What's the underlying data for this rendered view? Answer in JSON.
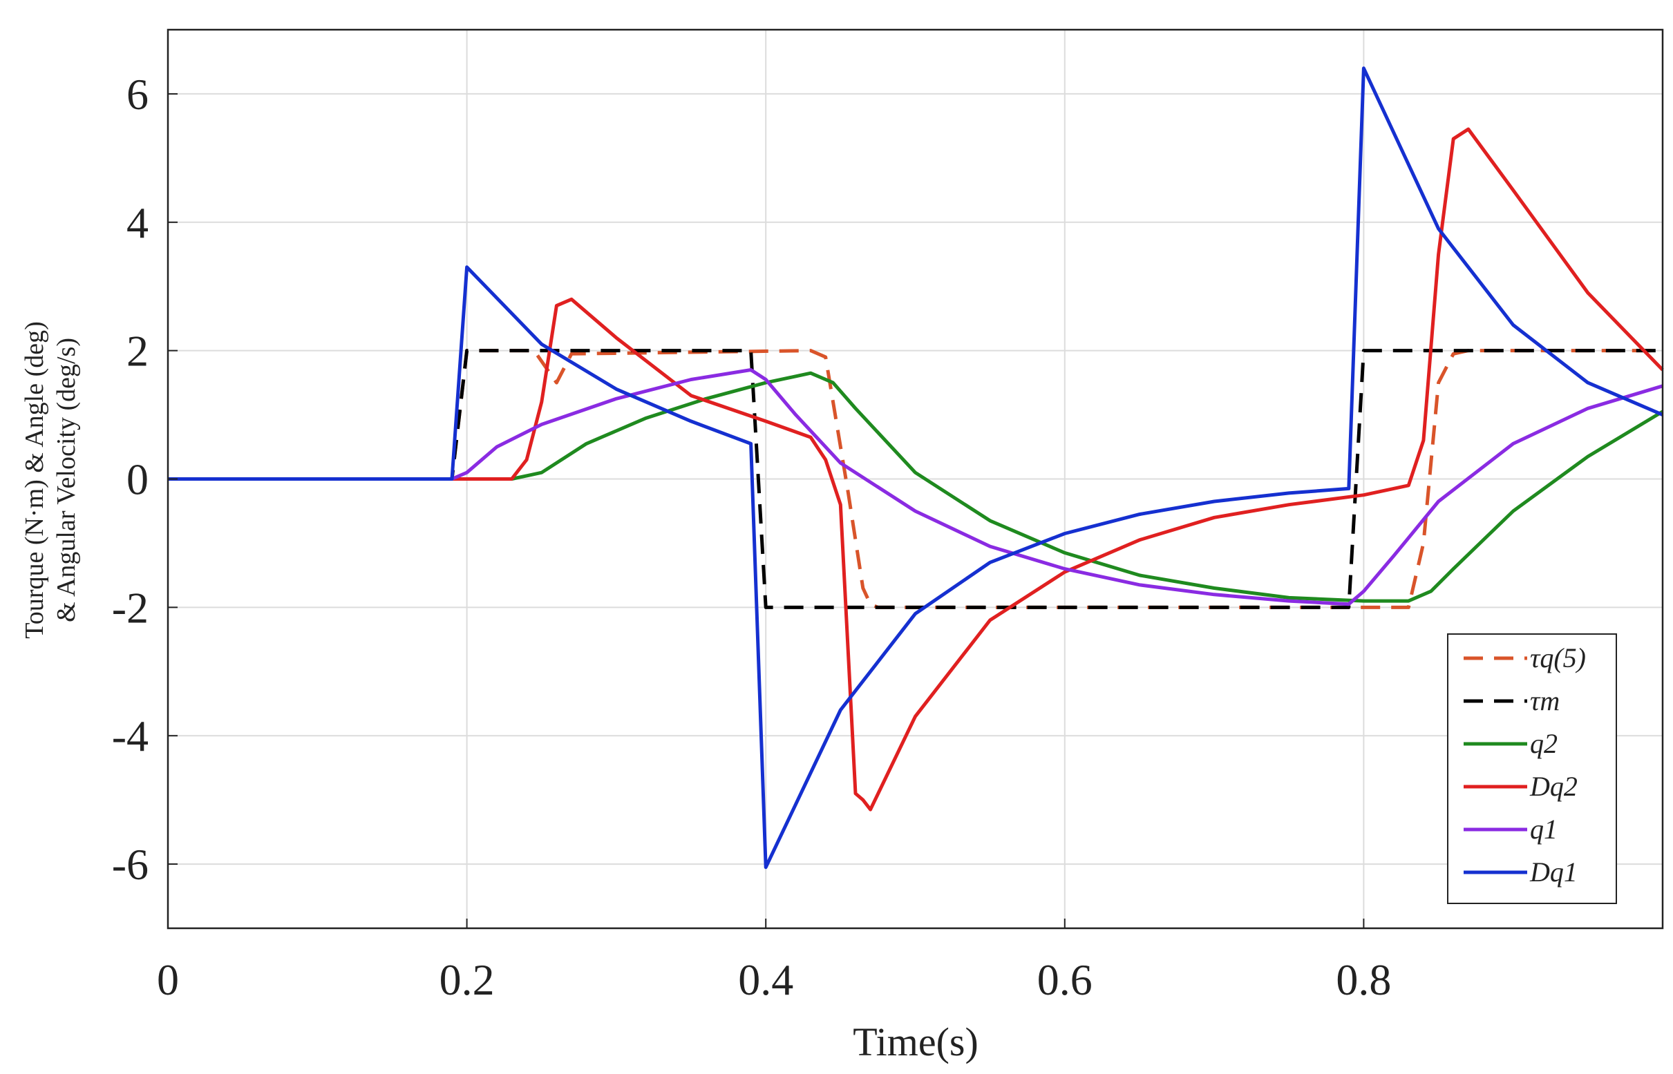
{
  "chart_data": {
    "type": "line",
    "title": "",
    "xlabel": "Time(s)",
    "ylabel_lines": [
      "Tourque (N·m) & Angle (deg)",
      "& Angular Velocity (deg/s)"
    ],
    "xlim": [
      0,
      1.0
    ],
    "ylim": [
      -7,
      7
    ],
    "xticks": [
      0,
      0.2,
      0.4,
      0.6,
      0.8
    ],
    "xtick_labels": [
      "0",
      "0.2",
      "0.4",
      "0.6",
      "0.8"
    ],
    "yticks": [
      6,
      4,
      2,
      0,
      -2,
      -4,
      -6
    ],
    "ytick_labels": [
      "6",
      "4",
      "2",
      "0",
      "-2",
      "-4",
      "-6"
    ],
    "grid": true,
    "legend_position": "bottom-right",
    "series": [
      {
        "name": "τq(5)",
        "color": "#d9542a",
        "dash": "dashed",
        "x": [
          0,
          0.19,
          0.2,
          0.245,
          0.26,
          0.27,
          0.43,
          0.44,
          0.455,
          0.465,
          0.47,
          0.475,
          0.8,
          0.83,
          0.84,
          0.85,
          0.86,
          0.87,
          1.0
        ],
        "y": [
          0,
          0,
          2,
          2,
          1.5,
          1.95,
          2,
          1.9,
          -0.2,
          -1.7,
          -1.95,
          -2,
          -2,
          -2,
          -1.0,
          1.5,
          1.95,
          2,
          2
        ]
      },
      {
        "name": "τm",
        "color": "#000000",
        "dash": "dashed",
        "x": [
          0,
          0.19,
          0.2,
          0.39,
          0.4,
          0.79,
          0.8,
          1.0
        ],
        "y": [
          0,
          0,
          2,
          2,
          -2,
          -2,
          2,
          2
        ]
      },
      {
        "name": "q2",
        "color": "#1f8a1f",
        "dash": "solid",
        "x": [
          0,
          0.23,
          0.25,
          0.28,
          0.32,
          0.36,
          0.4,
          0.43,
          0.445,
          0.46,
          0.5,
          0.55,
          0.6,
          0.65,
          0.7,
          0.75,
          0.8,
          0.83,
          0.845,
          0.86,
          0.9,
          0.95,
          1.0
        ],
        "y": [
          0,
          0,
          0.1,
          0.55,
          0.95,
          1.25,
          1.5,
          1.65,
          1.5,
          1.1,
          0.1,
          -0.65,
          -1.15,
          -1.5,
          -1.7,
          -1.85,
          -1.9,
          -1.9,
          -1.75,
          -1.4,
          -0.5,
          0.35,
          1.05
        ]
      },
      {
        "name": "Dq2",
        "color": "#e02020",
        "dash": "solid",
        "x": [
          0,
          0.23,
          0.24,
          0.25,
          0.26,
          0.265,
          0.27,
          0.3,
          0.35,
          0.4,
          0.43,
          0.44,
          0.45,
          0.46,
          0.465,
          0.47,
          0.5,
          0.55,
          0.6,
          0.65,
          0.7,
          0.75,
          0.8,
          0.82,
          0.83,
          0.84,
          0.85,
          0.86,
          0.87,
          0.9,
          0.95,
          1.0
        ],
        "y": [
          0,
          0,
          0.3,
          1.2,
          2.7,
          2.75,
          2.8,
          2.2,
          1.3,
          0.9,
          0.65,
          0.3,
          -0.4,
          -4.9,
          -5.0,
          -5.15,
          -3.7,
          -2.2,
          -1.45,
          -0.95,
          -0.6,
          -0.4,
          -0.25,
          -0.15,
          -0.1,
          0.6,
          3.5,
          5.3,
          5.45,
          4.5,
          2.9,
          1.7
        ]
      },
      {
        "name": "q1",
        "color": "#8a2be2",
        "dash": "solid",
        "x": [
          0,
          0.19,
          0.2,
          0.22,
          0.25,
          0.3,
          0.35,
          0.39,
          0.4,
          0.42,
          0.45,
          0.5,
          0.55,
          0.6,
          0.65,
          0.7,
          0.75,
          0.79,
          0.8,
          0.82,
          0.85,
          0.9,
          0.95,
          1.0
        ],
        "y": [
          0,
          0,
          0.1,
          0.5,
          0.85,
          1.25,
          1.55,
          1.7,
          1.55,
          1.0,
          0.25,
          -0.5,
          -1.05,
          -1.4,
          -1.65,
          -1.8,
          -1.9,
          -1.95,
          -1.75,
          -1.2,
          -0.35,
          0.55,
          1.1,
          1.45
        ]
      },
      {
        "name": "Dq1",
        "color": "#1530d0",
        "dash": "solid",
        "x": [
          0,
          0.19,
          0.2,
          0.25,
          0.3,
          0.35,
          0.39,
          0.4,
          0.45,
          0.5,
          0.55,
          0.6,
          0.65,
          0.7,
          0.75,
          0.79,
          0.8,
          0.85,
          0.9,
          0.95,
          1.0
        ],
        "y": [
          0,
          0,
          3.3,
          2.1,
          1.4,
          0.9,
          0.55,
          -6.05,
          -3.6,
          -2.1,
          -1.3,
          -0.85,
          -0.55,
          -0.35,
          -0.22,
          -0.15,
          6.4,
          3.9,
          2.4,
          1.5,
          1.0
        ]
      }
    ]
  }
}
